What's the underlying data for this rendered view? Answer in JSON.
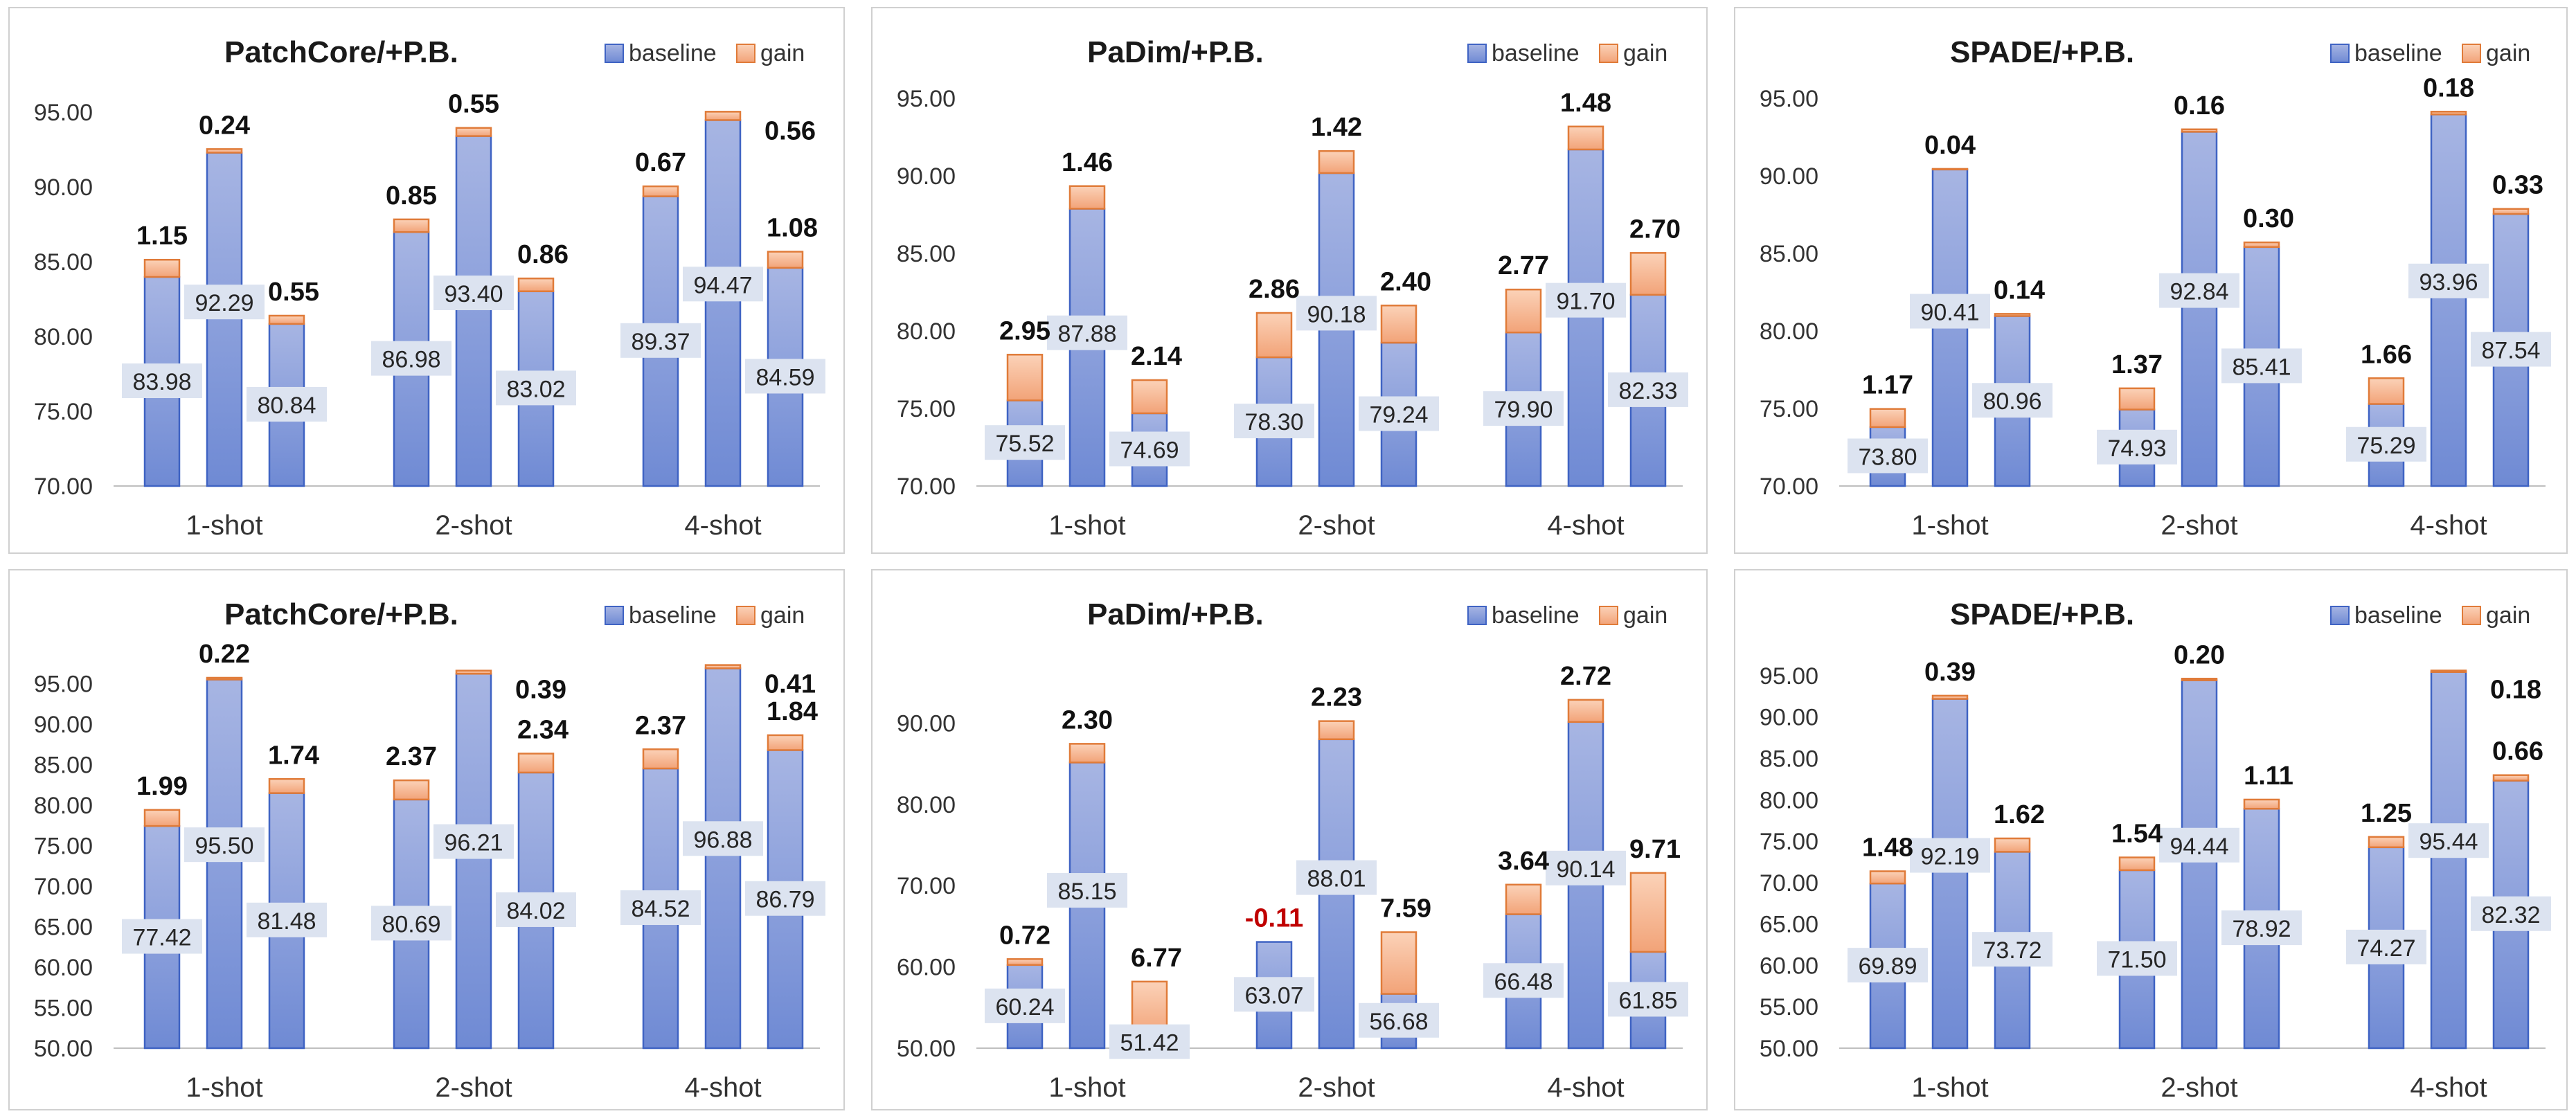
{
  "colors": {
    "baseline_top": "#a7b5e3",
    "baseline_bottom": "#6f8ad4",
    "baseline_edge": "#3f63c3",
    "gain_top": "#fbd2b8",
    "gain_bottom": "#f2a378",
    "gain_edge": "#e07b39",
    "label_box": "#dce3f0",
    "negative_label": "#c00000"
  },
  "chart_data": [
    {
      "type": "bar",
      "stacked": true,
      "title": "PatchCore/+P.B.",
      "legend": [
        "baseline",
        "gain"
      ],
      "legend_position": "top-right",
      "categories": [
        "1-shot",
        "2-shot",
        "4-shot"
      ],
      "ylim": [
        70,
        95
      ],
      "yticks": [
        "70.00",
        "75.00",
        "80.00",
        "85.00",
        "90.00",
        "95.00"
      ],
      "grid": false,
      "series": [
        {
          "name": "baseline",
          "values": [
            [
              83.98,
              92.29,
              80.84
            ],
            [
              86.98,
              93.4,
              83.02
            ],
            [
              89.37,
              94.47,
              84.59
            ]
          ],
          "labels": [
            [
              "83.98",
              "92.29",
              "80.84"
            ],
            [
              "86.98",
              "93.40",
              "83.02"
            ],
            [
              "89.37",
              "94.47",
              "84.59"
            ]
          ]
        },
        {
          "name": "gain",
          "values": [
            [
              1.15,
              0.24,
              0.55
            ],
            [
              0.85,
              0.55,
              0.86
            ],
            [
              0.67,
              0.56,
              1.08
            ]
          ],
          "labels": [
            [
              "1.15",
              "0.24",
              "0.55"
            ],
            [
              "0.85",
              "0.55",
              "0.86"
            ],
            [
              "0.67",
              "0.56",
              "1.08"
            ]
          ]
        }
      ]
    },
    {
      "type": "bar",
      "stacked": true,
      "title": "PaDim/+P.B.",
      "legend": [
        "baseline",
        "gain"
      ],
      "legend_position": "top-right",
      "categories": [
        "1-shot",
        "2-shot",
        "4-shot"
      ],
      "ylim": [
        70,
        95
      ],
      "yticks": [
        "70.00",
        "75.00",
        "80.00",
        "85.00",
        "90.00",
        "95.00"
      ],
      "grid": false,
      "series": [
        {
          "name": "baseline",
          "values": [
            [
              75.52,
              87.88,
              74.69
            ],
            [
              78.3,
              90.18,
              79.24
            ],
            [
              79.9,
              91.7,
              82.33
            ]
          ],
          "labels": [
            [
              "75.52",
              "87.88",
              "74.69"
            ],
            [
              "78.30",
              "90.18",
              "79.24"
            ],
            [
              "79.90",
              "91.70",
              "82.33"
            ]
          ]
        },
        {
          "name": "gain",
          "values": [
            [
              2.95,
              1.46,
              2.14
            ],
            [
              2.86,
              1.42,
              2.4
            ],
            [
              2.77,
              1.48,
              2.7
            ]
          ],
          "labels": [
            [
              "2.95",
              "1.46",
              "2.14"
            ],
            [
              "2.86",
              "1.42",
              "2.40"
            ],
            [
              "2.77",
              "1.48",
              "2.70"
            ]
          ]
        }
      ]
    },
    {
      "type": "bar",
      "stacked": true,
      "title": "SPADE/+P.B.",
      "legend": [
        "baseline",
        "gain"
      ],
      "legend_position": "top-right",
      "categories": [
        "1-shot",
        "2-shot",
        "4-shot"
      ],
      "ylim": [
        70,
        95
      ],
      "yticks": [
        "70.00",
        "75.00",
        "80.00",
        "85.00",
        "90.00",
        "95.00"
      ],
      "grid": false,
      "series": [
        {
          "name": "baseline",
          "values": [
            [
              73.8,
              90.41,
              80.96
            ],
            [
              74.93,
              92.84,
              85.41
            ],
            [
              75.29,
              93.96,
              87.54
            ]
          ],
          "labels": [
            [
              "73.80",
              "90.41",
              "80.96"
            ],
            [
              "74.93",
              "92.84",
              "85.41"
            ],
            [
              "75.29",
              "93.96",
              "87.54"
            ]
          ]
        },
        {
          "name": "gain",
          "values": [
            [
              1.17,
              0.04,
              0.14
            ],
            [
              1.37,
              0.16,
              0.3
            ],
            [
              1.66,
              0.18,
              0.33
            ]
          ],
          "labels": [
            [
              "1.17",
              "0.04",
              "0.14"
            ],
            [
              "1.37",
              "0.16",
              "0.30"
            ],
            [
              "1.66",
              "0.18",
              "0.33"
            ]
          ]
        }
      ]
    },
    {
      "type": "bar",
      "stacked": true,
      "title": "PatchCore/+P.B.",
      "legend": [
        "baseline",
        "gain"
      ],
      "legend_position": "top-right",
      "categories": [
        "1-shot",
        "2-shot",
        "4-shot"
      ],
      "ylim": [
        50,
        97
      ],
      "yticks": [
        "50.00",
        "55.00",
        "60.00",
        "65.00",
        "70.00",
        "75.00",
        "80.00",
        "85.00",
        "90.00",
        "95.00"
      ],
      "grid": false,
      "series": [
        {
          "name": "baseline",
          "values": [
            [
              77.42,
              95.5,
              81.48
            ],
            [
              80.69,
              96.21,
              84.02
            ],
            [
              84.52,
              96.88,
              86.79
            ]
          ],
          "labels": [
            [
              "77.42",
              "95.50",
              "81.48"
            ],
            [
              "80.69",
              "96.21",
              "84.02"
            ],
            [
              "84.52",
              "96.88",
              "86.79"
            ]
          ]
        },
        {
          "name": "gain",
          "values": [
            [
              1.99,
              0.22,
              1.74
            ],
            [
              2.37,
              0.39,
              2.34
            ],
            [
              2.37,
              0.41,
              1.84
            ]
          ],
          "labels": [
            [
              "1.99",
              "0.22",
              "1.74"
            ],
            [
              "2.37",
              "0.39",
              "2.34"
            ],
            [
              "2.37",
              "0.41",
              "1.84"
            ]
          ]
        }
      ]
    },
    {
      "type": "bar",
      "stacked": true,
      "title": "PaDim/+P.B.",
      "legend": [
        "baseline",
        "gain"
      ],
      "legend_position": "top-right",
      "categories": [
        "1-shot",
        "2-shot",
        "4-shot"
      ],
      "ylim": [
        50,
        96
      ],
      "yticks": [
        "50.00",
        "60.00",
        "70.00",
        "80.00",
        "90.00"
      ],
      "grid": false,
      "series": [
        {
          "name": "baseline",
          "values": [
            [
              60.24,
              85.15,
              51.42
            ],
            [
              63.07,
              88.01,
              56.68
            ],
            [
              66.48,
              90.14,
              61.85
            ]
          ],
          "labels": [
            [
              "60.24",
              "85.15",
              "51.42"
            ],
            [
              "63.07",
              "88.01",
              "56.68"
            ],
            [
              "66.48",
              "90.14",
              "61.85"
            ]
          ]
        },
        {
          "name": "gain",
          "values": [
            [
              0.72,
              2.3,
              6.77
            ],
            [
              -0.11,
              2.23,
              7.59
            ],
            [
              3.64,
              2.72,
              9.71
            ]
          ],
          "labels": [
            [
              "0.72",
              "2.30",
              "6.77"
            ],
            [
              "-0.11",
              "2.23",
              "7.59"
            ],
            [
              "3.64",
              "2.72",
              "9.71"
            ]
          ]
        }
      ]
    },
    {
      "type": "bar",
      "stacked": true,
      "title": "SPADE/+P.B.",
      "legend": [
        "baseline",
        "gain"
      ],
      "legend_position": "top-right",
      "categories": [
        "1-shot",
        "2-shot",
        "4-shot"
      ],
      "ylim": [
        50,
        96
      ],
      "yticks": [
        "50.00",
        "55.00",
        "60.00",
        "65.00",
        "70.00",
        "75.00",
        "80.00",
        "85.00",
        "90.00",
        "95.00"
      ],
      "grid": false,
      "series": [
        {
          "name": "baseline",
          "values": [
            [
              69.89,
              92.19,
              73.72
            ],
            [
              71.5,
              94.44,
              78.92
            ],
            [
              74.27,
              95.44,
              82.32
            ]
          ],
          "labels": [
            [
              "69.89",
              "92.19",
              "73.72"
            ],
            [
              "71.50",
              "94.44",
              "78.92"
            ],
            [
              "74.27",
              "95.44",
              "82.32"
            ]
          ]
        },
        {
          "name": "gain",
          "values": [
            [
              1.48,
              0.39,
              1.62
            ],
            [
              1.54,
              0.2,
              1.11
            ],
            [
              1.25,
              0.18,
              0.66
            ]
          ],
          "labels": [
            [
              "1.48",
              "0.39",
              "1.62"
            ],
            [
              "1.54",
              "0.20",
              "1.11"
            ],
            [
              "1.25",
              "0.18",
              "0.66"
            ]
          ]
        }
      ]
    }
  ]
}
